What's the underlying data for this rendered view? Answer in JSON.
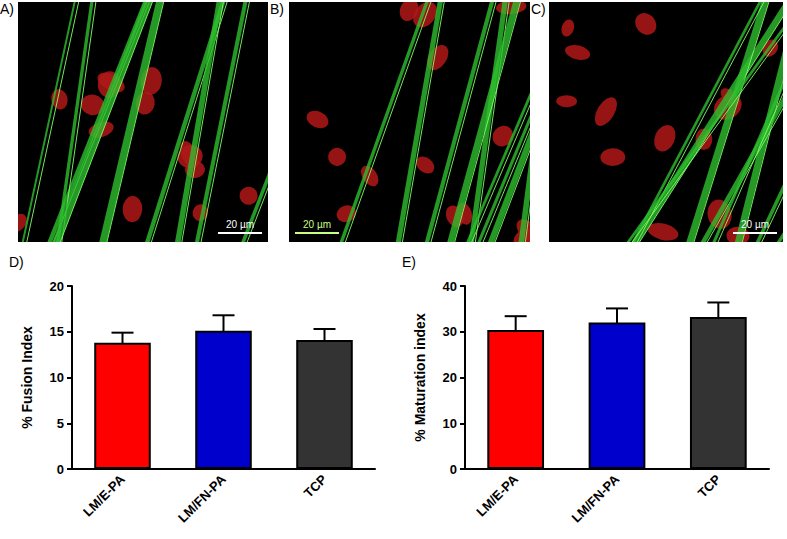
{
  "panels": [
    {
      "label": "A)",
      "scale_bar": "20 µm"
    },
    {
      "label": "B)",
      "scale_bar": "20 µm"
    },
    {
      "label": "C)",
      "scale_bar": "20 µm"
    }
  ],
  "chart_data": [
    {
      "type": "bar",
      "title": "D)",
      "y_label": "% Fusion Index",
      "categories": [
        "LM/E-PA",
        "LM/FN-PA",
        "TCP"
      ],
      "values": [
        13.8,
        15.1,
        14.1
      ],
      "errors": [
        1.1,
        1.7,
        1.2
      ],
      "colors": [
        "#ff0000",
        "#0000cc",
        "#333333"
      ],
      "ylim": [
        0,
        20
      ],
      "yticks": [
        0,
        5,
        10,
        15,
        20
      ],
      "grid": false
    },
    {
      "type": "bar",
      "title": "E)",
      "y_label": "% Maturation index",
      "categories": [
        "LM/E-PA",
        "LM/FN-PA",
        "TCP"
      ],
      "values": [
        30.4,
        32.0,
        33.2
      ],
      "errors": [
        3.0,
        3.1,
        3.2
      ],
      "colors": [
        "#ff0000",
        "#0000cc",
        "#333333"
      ],
      "ylim": [
        0,
        40
      ],
      "yticks": [
        0,
        10,
        20,
        30,
        40
      ],
      "grid": false
    }
  ]
}
